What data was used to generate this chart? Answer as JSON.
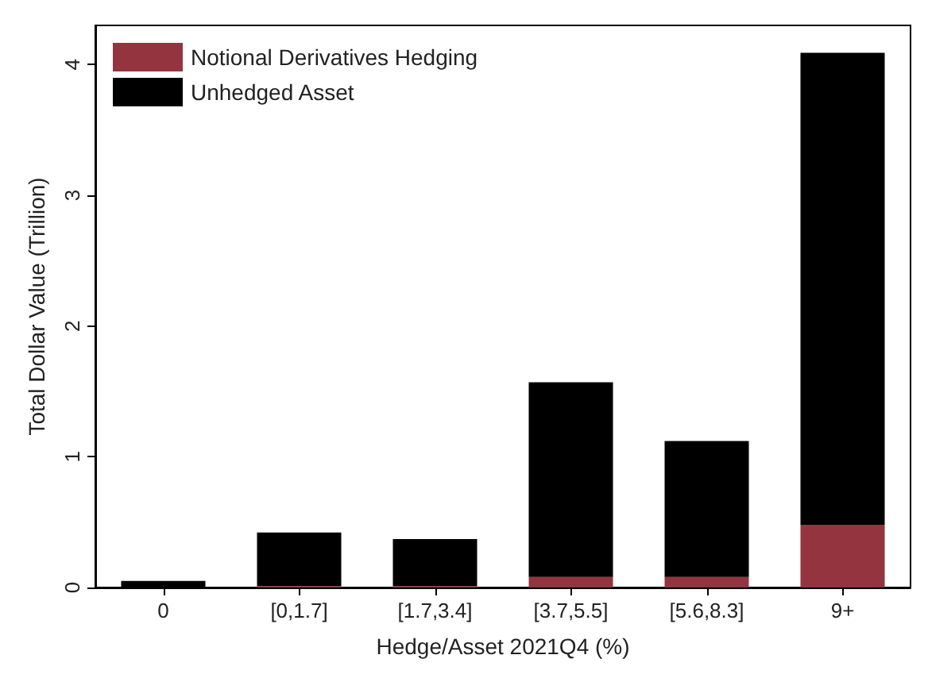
{
  "chart_data": {
    "type": "bar",
    "stacked": true,
    "xlabel": "Hedge/Asset 2021Q4 (%)",
    "ylabel": "Total Dollar Value (Trillion)",
    "categories": [
      "0",
      "[0,1.7]",
      "[1.7,3.4]",
      "[3.7,5.5]",
      "[5.6,8.3]",
      "9+"
    ],
    "series": [
      {
        "name": "Notional Derivatives Hedging",
        "color": "#93343f",
        "values": [
          0,
          0.01,
          0.01,
          0.08,
          0.08,
          0.48
        ]
      },
      {
        "name": "Unhedged Asset",
        "color": "#000000",
        "values": [
          0.05,
          0.41,
          0.36,
          1.49,
          1.04,
          3.61
        ]
      }
    ],
    "ylim": [
      0,
      4.3
    ],
    "yticks": [
      0,
      1,
      2,
      3,
      4
    ],
    "grid": false,
    "legend": "top left"
  }
}
